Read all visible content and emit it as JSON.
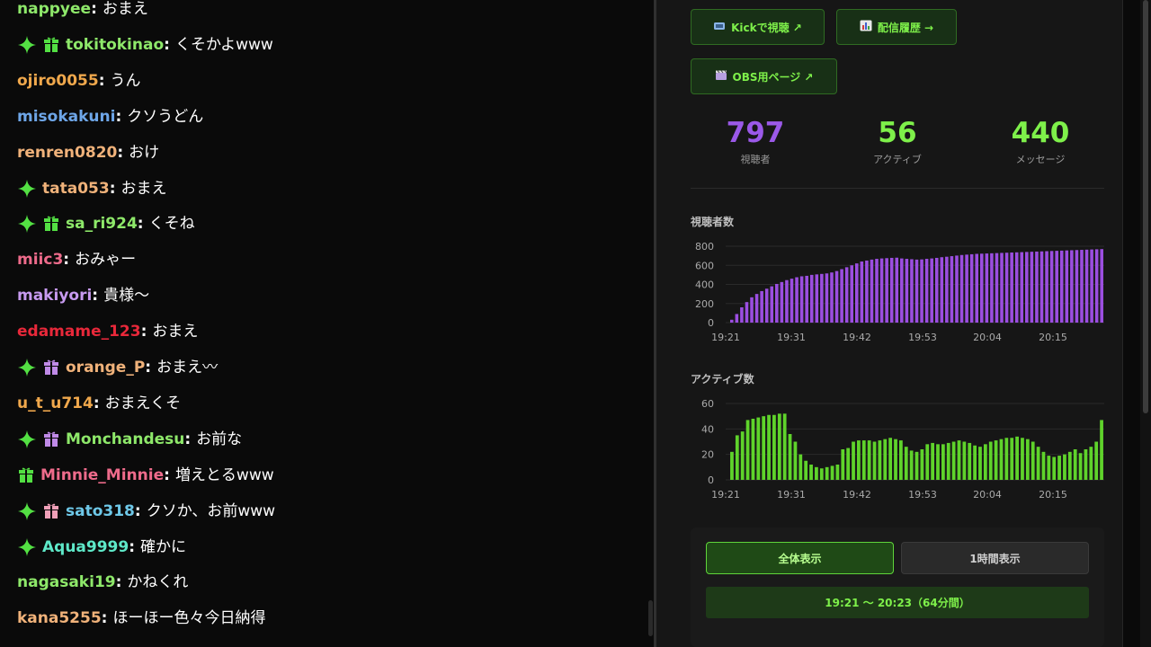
{
  "chat": {
    "messages": [
      {
        "user": "nappyee",
        "text": "おまえ",
        "color": "#8ee86a",
        "badges": []
      },
      {
        "user": "tokitokinao",
        "text": "くそかよwww",
        "color": "#8ee86a",
        "badges": [
          "sparkle-icon",
          "gift-icon"
        ],
        "gift_color": "#53e043"
      },
      {
        "user": "ojiro0055",
        "text": "うん",
        "color": "#f0a84c",
        "badges": []
      },
      {
        "user": "misokakuni",
        "text": "クソうどん",
        "color": "#6ea6e8",
        "badges": []
      },
      {
        "user": "renren0820",
        "text": "おけ",
        "color": "#f0b27a",
        "badges": []
      },
      {
        "user": "tata053",
        "text": "おまえ",
        "color": "#f0b27a",
        "badges": [
          "sparkle-icon"
        ]
      },
      {
        "user": "sa_ri924",
        "text": "くそね",
        "color": "#8ee86a",
        "badges": [
          "sparkle-icon",
          "gift-icon"
        ],
        "gift_color": "#53e043"
      },
      {
        "user": "miic3",
        "text": "おみゃー",
        "color": "#ee6b8b",
        "badges": []
      },
      {
        "user": "makiyori",
        "text": "貴様〜",
        "color": "#c79af0",
        "badges": []
      },
      {
        "user": "edamame_123",
        "text": "おまえ",
        "color": "#e8283a",
        "badges": []
      },
      {
        "user": "orange_P",
        "text": "おまえ〰",
        "color": "#f0b27a",
        "badges": [
          "sparkle-icon",
          "gift-icon"
        ],
        "gift_color": "#c08ae8"
      },
      {
        "user": "u_t_u714",
        "text": "おまえくそ",
        "color": "#f0a84c",
        "badges": []
      },
      {
        "user": "Monchandesu",
        "text": "お前な",
        "color": "#8ee86a",
        "badges": [
          "sparkle-icon",
          "gift-icon"
        ],
        "gift_color": "#c08ae8"
      },
      {
        "user": "Minnie_Minnie",
        "text": "増えとるwww",
        "color": "#ee6b8b",
        "badges": [
          "gift-icon"
        ],
        "gift_color": "#53e043"
      },
      {
        "user": "sato318",
        "text": "クソか、お前www",
        "color": "#6ec8e8",
        "badges": [
          "sparkle-icon",
          "gift-icon"
        ],
        "gift_color": "#f0a0b8"
      },
      {
        "user": "Aqua9999",
        "text": "確かに",
        "color": "#5ee8c8",
        "badges": [
          "sparkle-icon"
        ]
      },
      {
        "user": "nagasaki19",
        "text": "かねくれ",
        "color": "#8ee86a",
        "badges": []
      },
      {
        "user": "kana5255",
        "text": "ほーほー色々今日納得",
        "color": "#f0b27a",
        "badges": []
      }
    ]
  },
  "links": {
    "kick_label": "Kickで視聴 ↗",
    "history_label": "配信履歴 →",
    "obs_label": "OBS用ページ ↗"
  },
  "stats": {
    "viewers": {
      "value": "797",
      "label": "視聴者",
      "color": "#9b59e8"
    },
    "active": {
      "value": "56",
      "label": "アクティブ",
      "color": "#7ef04a"
    },
    "messages": {
      "value": "440",
      "label": "メッセージ",
      "color": "#7ef04a"
    }
  },
  "charts": {
    "viewers": {
      "title": "視聴者数",
      "color": "#9b4ee0",
      "yticks": [
        "800",
        "600",
        "400",
        "200",
        "0"
      ],
      "ymax": 800,
      "xticks": [
        "19:21",
        "19:31",
        "19:42",
        "19:53",
        "20:04",
        "20:15"
      ],
      "values": [
        30,
        90,
        160,
        215,
        265,
        300,
        330,
        355,
        380,
        405,
        425,
        445,
        460,
        475,
        485,
        490,
        500,
        505,
        510,
        515,
        525,
        540,
        560,
        580,
        600,
        620,
        640,
        650,
        660,
        668,
        672,
        675,
        678,
        680,
        672,
        668,
        664,
        660,
        662,
        668,
        672,
        678,
        685,
        690,
        696,
        702,
        708,
        712,
        716,
        720,
        722,
        724,
        726,
        728,
        730,
        732,
        734,
        736,
        738,
        740,
        742,
        744,
        746,
        748,
        750,
        752,
        754,
        756,
        758,
        760,
        762,
        764,
        766,
        768,
        770
      ]
    },
    "active": {
      "title": "アクティブ数",
      "color": "#5fd32b",
      "yticks": [
        "60",
        "40",
        "20",
        "0"
      ],
      "ymax": 60,
      "xticks": [
        "19:21",
        "19:31",
        "19:42",
        "19:53",
        "20:04",
        "20:15"
      ],
      "values": [
        22,
        35,
        38,
        47,
        48,
        49,
        50,
        51,
        51,
        52,
        52,
        36,
        30,
        20,
        15,
        12,
        10,
        9,
        10,
        11,
        12,
        24,
        25,
        30,
        31,
        31,
        31,
        30,
        31,
        32,
        33,
        32,
        31,
        26,
        23,
        22,
        24,
        28,
        29,
        28,
        28,
        29,
        30,
        31,
        30,
        29,
        27,
        26,
        28,
        30,
        31,
        32,
        33,
        33,
        34,
        33,
        32,
        30,
        26,
        22,
        19,
        18,
        19,
        20,
        22,
        24,
        21,
        24,
        26,
        30,
        47
      ]
    }
  },
  "controls": {
    "all_label": "全体表示",
    "hour_label": "1時間表示",
    "range_text": "19:21 〜 20:23（64分間）"
  }
}
